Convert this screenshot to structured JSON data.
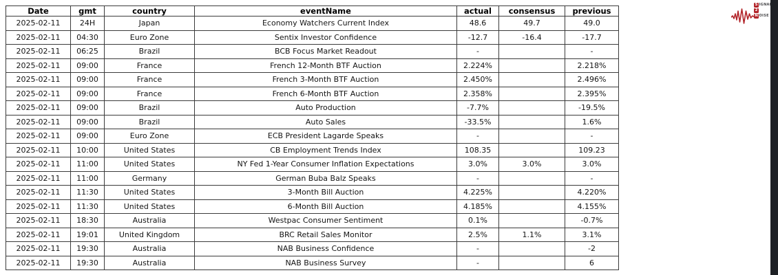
{
  "chart_data": {
    "type": "table",
    "title": "",
    "columns": [
      "Date",
      "gmt",
      "country",
      "eventName",
      "actual",
      "consensus",
      "previous"
    ],
    "rows": [
      [
        "2025-02-11",
        "24H",
        "Japan",
        "Economy Watchers Current Index",
        "48.6",
        "49.7",
        "49.0"
      ],
      [
        "2025-02-11",
        "04:30",
        "Euro Zone",
        "Sentix Investor Confidence",
        "-12.7",
        "-16.4",
        "-17.7"
      ],
      [
        "2025-02-11",
        "06:25",
        "Brazil",
        "BCB Focus Market Readout",
        "-",
        "",
        "-"
      ],
      [
        "2025-02-11",
        "09:00",
        "France",
        "French 12-Month BTF Auction",
        "2.224%",
        "",
        "2.218%"
      ],
      [
        "2025-02-11",
        "09:00",
        "France",
        "French 3-Month BTF Auction",
        "2.450%",
        "",
        "2.496%"
      ],
      [
        "2025-02-11",
        "09:00",
        "France",
        "French 6-Month BTF Auction",
        "2.358%",
        "",
        "2.395%"
      ],
      [
        "2025-02-11",
        "09:00",
        "Brazil",
        "Auto Production",
        "-7.7%",
        "",
        "-19.5%"
      ],
      [
        "2025-02-11",
        "09:00",
        "Brazil",
        "Auto Sales",
        "-33.5%",
        "",
        "1.6%"
      ],
      [
        "2025-02-11",
        "09:00",
        "Euro Zone",
        "ECB President Lagarde Speaks",
        "-",
        "",
        "-"
      ],
      [
        "2025-02-11",
        "10:00",
        "United States",
        "CB Employment Trends Index",
        "108.35",
        "",
        "109.23"
      ],
      [
        "2025-02-11",
        "11:00",
        "United States",
        "NY Fed 1-Year Consumer Inflation Expectations",
        "3.0%",
        "3.0%",
        "3.0%"
      ],
      [
        "2025-02-11",
        "11:00",
        "Germany",
        "German Buba Balz Speaks",
        "-",
        "",
        "-"
      ],
      [
        "2025-02-11",
        "11:30",
        "United States",
        "3-Month Bill Auction",
        "4.225%",
        "",
        "4.220%"
      ],
      [
        "2025-02-11",
        "11:30",
        "United States",
        "6-Month Bill Auction",
        "4.185%",
        "",
        "4.155%"
      ],
      [
        "2025-02-11",
        "18:30",
        "Australia",
        "Westpac Consumer Sentiment",
        "0.1%",
        "",
        "-0.7%"
      ],
      [
        "2025-02-11",
        "19:01",
        "United Kingdom",
        "BRC Retail Sales Monitor",
        "2.5%",
        "1.1%",
        "3.1%"
      ],
      [
        "2025-02-11",
        "19:30",
        "Australia",
        "NAB Business Confidence",
        "-",
        "",
        "-2"
      ],
      [
        "2025-02-11",
        "19:30",
        "Australia",
        "NAB Business Survey",
        "-",
        "",
        "6"
      ]
    ],
    "layout": {
      "grid": "all-borders",
      "cell_alignment": "center",
      "header_bold": true
    }
  },
  "logo": {
    "line1_box": "S",
    "line1_text": "IGNAL",
    "line2_box": "2",
    "line3_box": "N",
    "line3_text": "OISE",
    "accent_color": "#b2252a"
  },
  "colors": {
    "table_border": "#3a3a3a",
    "right_edge_bar": "#1e2126",
    "background": "#ffffff"
  }
}
